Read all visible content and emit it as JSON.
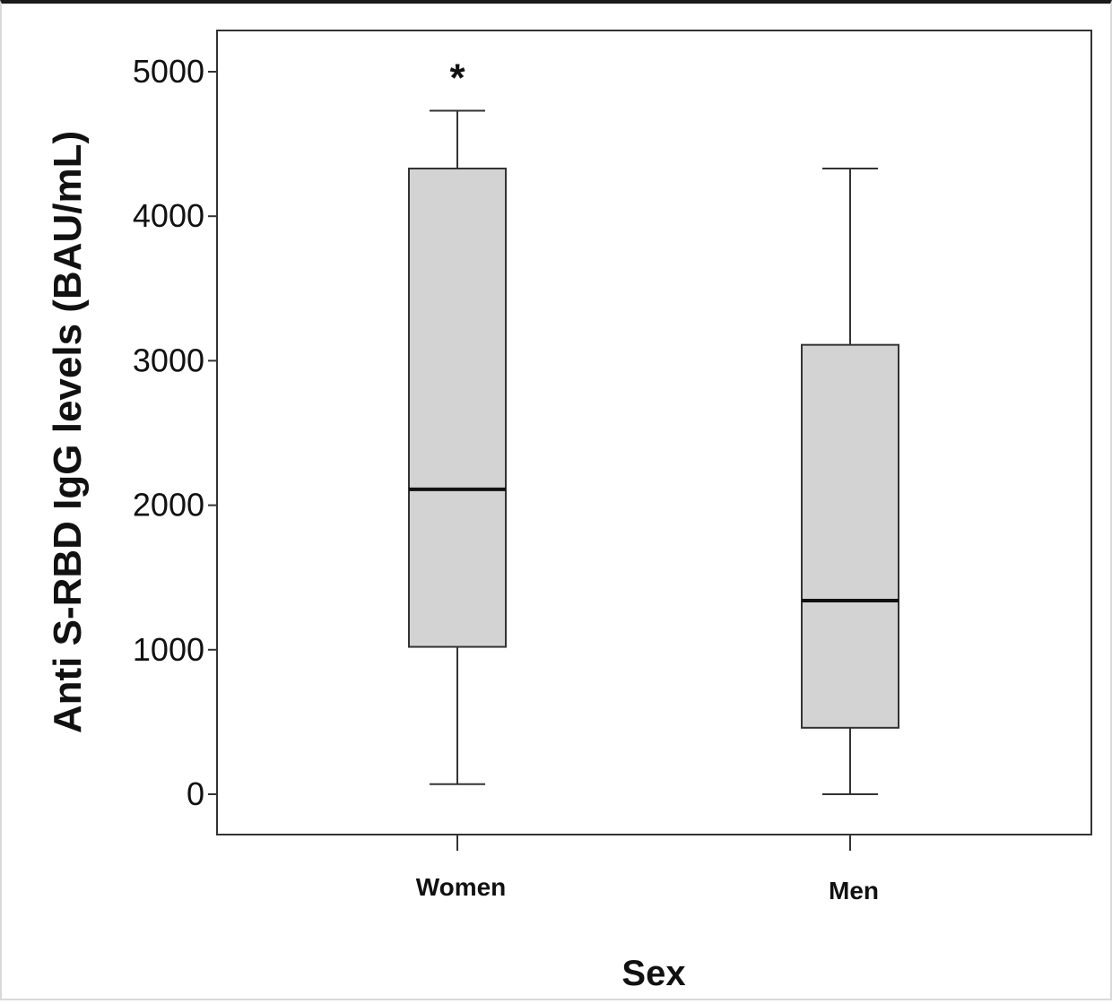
{
  "chart_data": {
    "type": "boxplot",
    "xlabel": "Sex",
    "ylabel": "Anti S-RBD IgG levels (BAU/mL)",
    "ylim": [
      -280,
      5300
    ],
    "yticks": [
      0,
      1000,
      2000,
      3000,
      4000,
      5000
    ],
    "ytick_labels": [
      "0",
      "1000",
      "2000",
      "3000",
      "4000",
      "5000"
    ],
    "grid": false,
    "box_color": "#d3d3d3",
    "categories": [
      "Women",
      "Men"
    ],
    "boxes": [
      {
        "category": "Women",
        "whisker_low": 70,
        "q1": 1020,
        "median": 2110,
        "q3": 4330,
        "whisker_high": 4730,
        "annotation": "*"
      },
      {
        "category": "Men",
        "whisker_low": 0,
        "q1": 460,
        "median": 1340,
        "q3": 3110,
        "whisker_high": 4330,
        "annotation": ""
      }
    ]
  }
}
